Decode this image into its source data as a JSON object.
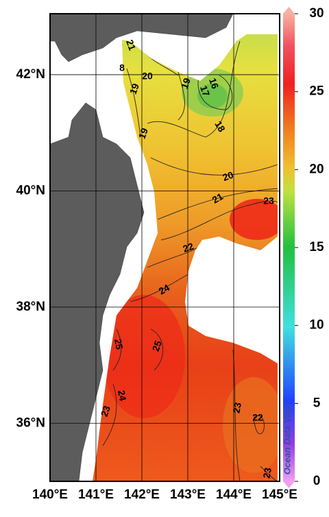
{
  "map": {
    "lon_ticks": [
      {
        "value": 140,
        "label": "140°E"
      },
      {
        "value": 141,
        "label": "141°E"
      },
      {
        "value": 142,
        "label": "142°E"
      },
      {
        "value": 143,
        "label": "143°E"
      },
      {
        "value": 144,
        "label": "144°E"
      },
      {
        "value": 145,
        "label": "145°E"
      }
    ],
    "lat_ticks": [
      {
        "value": 36,
        "label": "36°N"
      },
      {
        "value": 38,
        "label": "38°N"
      },
      {
        "value": 40,
        "label": "40°N"
      },
      {
        "value": 42,
        "label": "42°N"
      }
    ],
    "lonlim": [
      140,
      145
    ],
    "latlim": [
      35,
      43.05
    ],
    "colorbar": {
      "lim": [
        0,
        30
      ],
      "ticks": [
        0,
        5,
        10,
        15,
        20,
        25,
        30
      ]
    },
    "contour_labels": [
      "21",
      "20",
      "19",
      "8",
      "19",
      "16",
      "17",
      "18",
      "19",
      "20",
      "21",
      "23",
      "22",
      "24",
      "25",
      "25",
      "24",
      "23",
      "23",
      "22",
      "23"
    ],
    "watermark": "Ocean Data View"
  }
}
